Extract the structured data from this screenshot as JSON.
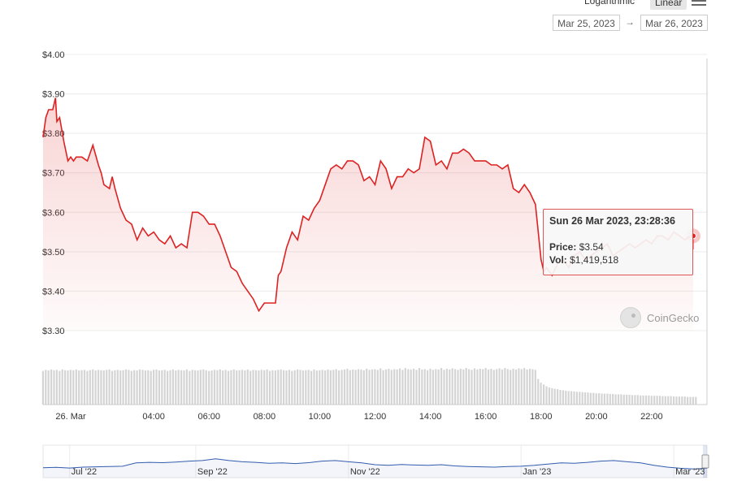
{
  "controls": {
    "scale_label": "Logarithmic",
    "scale_button": "Linear",
    "date_from": "Mar 25, 2023",
    "date_arrow": "→",
    "date_to": "Mar 26, 2023"
  },
  "tooltip": {
    "date": "Sun 26 Mar 2023, 23:28:36",
    "price_label": "Price:",
    "price_value": "$3.54",
    "vol_label": "Vol:",
    "vol_value": "$1,419,518"
  },
  "watermark": "CoinGecko",
  "colors": {
    "line": "#dd2222",
    "volume": "#d4d4d4",
    "navigator": "#335cad"
  },
  "chart_data": {
    "type": "line",
    "title": "",
    "xlabel": "",
    "ylabel": "",
    "ylim": [
      3.3,
      4.0
    ],
    "xlim": [
      0,
      24
    ],
    "y_ticks": [
      {
        "v": 4.0,
        "label": "$4.00"
      },
      {
        "v": 3.9,
        "label": "$3.90"
      },
      {
        "v": 3.8,
        "label": "$3.80"
      },
      {
        "v": 3.7,
        "label": "$3.70"
      },
      {
        "v": 3.6,
        "label": "$3.60"
      },
      {
        "v": 3.5,
        "label": "$3.50"
      },
      {
        "v": 3.4,
        "label": "$3.40"
      },
      {
        "v": 3.3,
        "label": "$3.30"
      }
    ],
    "x_ticks": [
      {
        "v": 1.0,
        "label": "26. Mar"
      },
      {
        "v": 4,
        "label": "04:00"
      },
      {
        "v": 6,
        "label": "06:00"
      },
      {
        "v": 8,
        "label": "08:00"
      },
      {
        "v": 10,
        "label": "10:00"
      },
      {
        "v": 12,
        "label": "12:00"
      },
      {
        "v": 14,
        "label": "14:00"
      },
      {
        "v": 16,
        "label": "16:00"
      },
      {
        "v": 18,
        "label": "18:00"
      },
      {
        "v": 20,
        "label": "20:00"
      },
      {
        "v": 22,
        "label": "22:00"
      }
    ],
    "series": [
      {
        "x": [
          0.0,
          0.1,
          0.2,
          0.35,
          0.45,
          0.5,
          0.6,
          0.75,
          0.9,
          1.0,
          1.1,
          1.2,
          1.4,
          1.6,
          1.8,
          2.0,
          2.1,
          2.2,
          2.4,
          2.5,
          2.6,
          2.8,
          3.0,
          3.2,
          3.4,
          3.6,
          3.8,
          4.0,
          4.2,
          4.4,
          4.6,
          4.8,
          5.0,
          5.2,
          5.4,
          5.6,
          5.8,
          6.0,
          6.2,
          6.4,
          6.6,
          6.8,
          7.0,
          7.2,
          7.4,
          7.6,
          7.8,
          8.0,
          8.2,
          8.4,
          8.5,
          8.6,
          8.8,
          9.0,
          9.2,
          9.4,
          9.6,
          9.8,
          10.0,
          10.2,
          10.4,
          10.6,
          10.8,
          11.0,
          11.2,
          11.4,
          11.6,
          11.8,
          12.0,
          12.2,
          12.4,
          12.6,
          12.8,
          13.0,
          13.2,
          13.4,
          13.6,
          13.8,
          14.0,
          14.2,
          14.4,
          14.6,
          14.8,
          15.0,
          15.2,
          15.4,
          15.6,
          15.8,
          16.0,
          16.2,
          16.4,
          16.6,
          16.8,
          17.0,
          17.2,
          17.4,
          17.6,
          17.8,
          18.0,
          18.1,
          18.2,
          18.4,
          18.6,
          18.8,
          19.0,
          19.2,
          19.4,
          19.6,
          19.8,
          20.0,
          20.2,
          20.4,
          20.6,
          20.8,
          21.0,
          21.2,
          21.4,
          21.6,
          21.8,
          22.0,
          22.2,
          22.4,
          22.6,
          22.8,
          23.0,
          23.2,
          23.4,
          23.5
        ],
        "y": [
          3.79,
          3.84,
          3.86,
          3.86,
          3.89,
          3.83,
          3.84,
          3.78,
          3.73,
          3.74,
          3.73,
          3.74,
          3.74,
          3.73,
          3.77,
          3.72,
          3.7,
          3.67,
          3.66,
          3.69,
          3.66,
          3.61,
          3.58,
          3.57,
          3.53,
          3.56,
          3.54,
          3.55,
          3.53,
          3.52,
          3.54,
          3.51,
          3.52,
          3.51,
          3.6,
          3.6,
          3.59,
          3.57,
          3.57,
          3.54,
          3.5,
          3.46,
          3.45,
          3.42,
          3.4,
          3.38,
          3.35,
          3.37,
          3.37,
          3.37,
          3.44,
          3.45,
          3.51,
          3.55,
          3.53,
          3.59,
          3.58,
          3.61,
          3.63,
          3.67,
          3.71,
          3.72,
          3.71,
          3.73,
          3.73,
          3.72,
          3.68,
          3.69,
          3.67,
          3.73,
          3.71,
          3.66,
          3.69,
          3.69,
          3.71,
          3.7,
          3.71,
          3.79,
          3.78,
          3.72,
          3.73,
          3.71,
          3.75,
          3.75,
          3.76,
          3.75,
          3.73,
          3.73,
          3.73,
          3.72,
          3.72,
          3.71,
          3.72,
          3.66,
          3.65,
          3.67,
          3.65,
          3.62,
          3.48,
          3.45,
          3.46,
          3.44,
          3.47,
          3.48,
          3.46,
          3.49,
          3.5,
          3.48,
          3.49,
          3.5,
          3.51,
          3.52,
          3.49,
          3.5,
          3.51,
          3.52,
          3.51,
          3.52,
          3.53,
          3.52,
          3.54,
          3.54,
          3.53,
          3.55,
          3.54,
          3.53,
          3.54,
          3.54
        ]
      }
    ],
    "volume": {
      "x_start": 0.0,
      "x_step": 0.1,
      "values": [
        0.92,
        0.95,
        0.93,
        0.96,
        0.94,
        0.95,
        0.92,
        0.96,
        0.94,
        0.93,
        0.95,
        0.94,
        0.96,
        0.93,
        0.94,
        0.95,
        0.92,
        0.94,
        0.96,
        0.93,
        0.95,
        0.94,
        0.93,
        0.95,
        0.96,
        0.92,
        0.94,
        0.95,
        0.93,
        0.94,
        0.96,
        0.95,
        0.92,
        0.94,
        0.93,
        0.96,
        0.95,
        0.93,
        0.94,
        0.92,
        0.95,
        0.96,
        0.93,
        0.94,
        0.95,
        0.92,
        0.94,
        0.96,
        0.93,
        0.95,
        0.94,
        0.93,
        0.96,
        0.92,
        0.95,
        0.94,
        0.93,
        0.95,
        0.96,
        0.94,
        0.92,
        0.93,
        0.95,
        0.94,
        0.96,
        0.93,
        0.95,
        0.92,
        0.94,
        0.96,
        0.93,
        0.94,
        0.95,
        0.93,
        0.96,
        0.92,
        0.95,
        0.94,
        0.93,
        0.95,
        0.94,
        0.96,
        0.92,
        0.94,
        0.93,
        0.95,
        0.96,
        0.94,
        0.93,
        0.95,
        0.92,
        0.94,
        0.96,
        0.95,
        0.93,
        0.94,
        0.95,
        0.92,
        0.96,
        0.93,
        0.94,
        0.95,
        0.93,
        0.96,
        0.94,
        0.95,
        0.97,
        0.93,
        0.95,
        0.96,
        0.98,
        0.94,
        0.96,
        0.95,
        0.97,
        0.96,
        0.94,
        0.98,
        0.95,
        0.96,
        0.97,
        0.95,
        0.99,
        0.94,
        0.96,
        0.98,
        0.95,
        0.97,
        0.96,
        0.99,
        0.95,
        1.0,
        0.97,
        0.96,
        0.98,
        0.95,
        1.0,
        0.96,
        0.97,
        0.94,
        0.98,
        0.95,
        0.97,
        0.96,
        1.0,
        0.95,
        0.98,
        0.96,
        0.99,
        0.97,
        0.95,
        0.98,
        0.96,
        1.0,
        0.97,
        0.95,
        0.99,
        0.96,
        0.98,
        0.97,
        1.0,
        0.96,
        0.98,
        0.95,
        0.97,
        0.99,
        0.96,
        1.0,
        0.97,
        0.95,
        0.98,
        0.96,
        0.99,
        0.97,
        1.0,
        0.96,
        0.98,
        0.97,
        0.95,
        0.7,
        0.6,
        0.55,
        0.5,
        0.47,
        0.45,
        0.43,
        0.42,
        0.4,
        0.39,
        0.38,
        0.37,
        0.37,
        0.36,
        0.35,
        0.35,
        0.34,
        0.33,
        0.33,
        0.32,
        0.32,
        0.31,
        0.31,
        0.3,
        0.3,
        0.3,
        0.29,
        0.29,
        0.28,
        0.28,
        0.28,
        0.27,
        0.27,
        0.27,
        0.26,
        0.26,
        0.26,
        0.25,
        0.25,
        0.25,
        0.25,
        0.24,
        0.24,
        0.24,
        0.24,
        0.23,
        0.23,
        0.23,
        0.23,
        0.22,
        0.22,
        0.22,
        0.22,
        0.22,
        0.21,
        0.21,
        0.21,
        0.21
      ]
    },
    "navigator": {
      "tick_labels": [
        "Jul '22",
        "Sep '22",
        "Nov '22",
        "Jan '23",
        "Mar '23"
      ],
      "tick_positions": [
        0.04,
        0.23,
        0.46,
        0.72,
        0.95
      ],
      "x": [
        0.0,
        0.02,
        0.04,
        0.06,
        0.08,
        0.1,
        0.12,
        0.14,
        0.16,
        0.18,
        0.2,
        0.22,
        0.24,
        0.26,
        0.28,
        0.3,
        0.32,
        0.34,
        0.36,
        0.38,
        0.4,
        0.42,
        0.44,
        0.46,
        0.48,
        0.5,
        0.52,
        0.54,
        0.56,
        0.58,
        0.6,
        0.62,
        0.64,
        0.66,
        0.68,
        0.7,
        0.72,
        0.74,
        0.76,
        0.78,
        0.8,
        0.82,
        0.84,
        0.86,
        0.88,
        0.9,
        0.92,
        0.94,
        0.96,
        0.98,
        1.0
      ],
      "y": [
        2.1,
        2.15,
        2.05,
        2.2,
        2.25,
        2.3,
        2.35,
        2.9,
        3.0,
        2.95,
        3.05,
        3.2,
        3.3,
        3.6,
        3.3,
        3.1,
        3.0,
        2.85,
        2.9,
        2.8,
        2.95,
        3.2,
        3.3,
        3.1,
        2.9,
        2.6,
        2.5,
        2.65,
        2.55,
        2.5,
        2.6,
        2.4,
        2.3,
        2.25,
        2.2,
        2.3,
        2.35,
        2.5,
        2.7,
        2.9,
        2.85,
        3.0,
        3.2,
        3.3,
        3.1,
        2.9,
        2.5,
        2.2,
        2.0,
        1.9,
        2.0
      ]
    }
  }
}
